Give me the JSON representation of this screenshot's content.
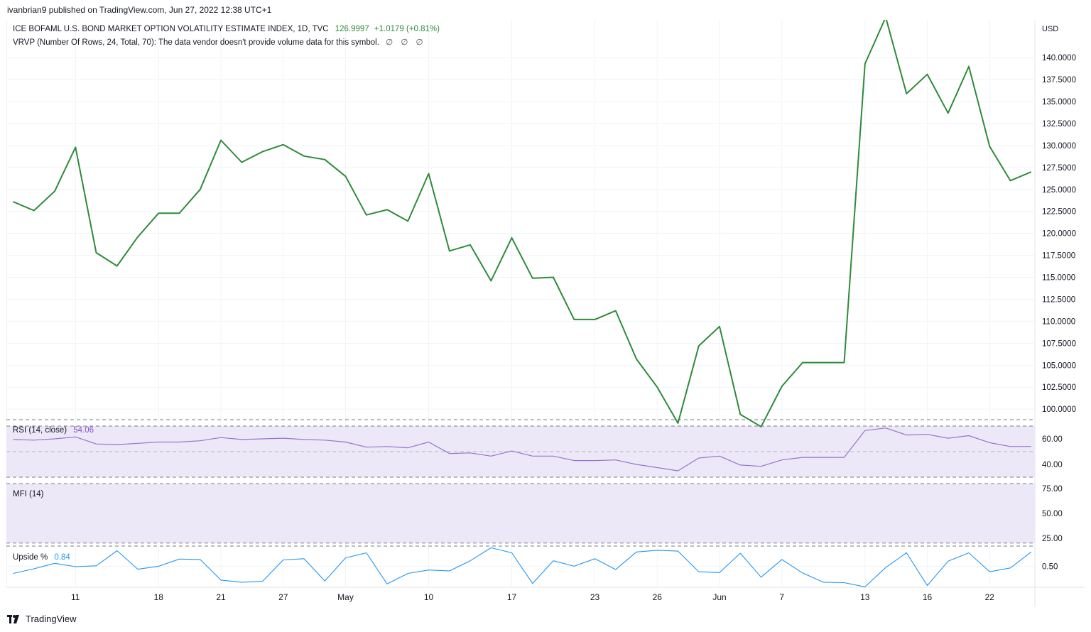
{
  "header": {
    "published": "ivanbrian9 published on TradingView.com, Jun 27, 2022 12:38 UTC+1"
  },
  "legend": {
    "symbol": "ICE BOFAML U.S. BOND MARKET OPTION VOLATILITY ESTIMATE INDEX, 1D, TVC",
    "last": "126.9997",
    "change": "+1.0179 (+0.81%)",
    "vrvp": "VRVP (Number Of Rows, 24, Total, 70): The data vendor doesn't provide volume data for this symbol.",
    "vrvp_icons": "∅ ∅ ∅",
    "rsi_label": "RSI (14, close)",
    "rsi_value": "54.06",
    "mfi_label": "MFI (14)",
    "upside_label": "Upside %",
    "upside_value": "0.84"
  },
  "footer": {
    "brand": "TradingView",
    "logo_icon": "tradingview-logo-icon"
  },
  "colors": {
    "price": "#2e8b3a",
    "rsi": "#9575cd",
    "upside": "#2196f3",
    "band": "#ede8f7"
  },
  "chart_data": [
    {
      "type": "line",
      "name": "price",
      "currency": "USD",
      "x_tick_labels": [
        "11",
        "18",
        "21",
        "27",
        "May",
        "10",
        "17",
        "23",
        "26",
        "Jun",
        "7",
        "13",
        "16",
        "22"
      ],
      "x_tick_index": [
        3,
        7,
        10,
        13,
        16,
        20,
        24,
        28,
        31,
        34,
        37,
        41,
        44,
        47
      ],
      "yticks": [
        100,
        102.5,
        105,
        107.5,
        110,
        112.5,
        115,
        117.5,
        120,
        122.5,
        125,
        127.5,
        130,
        132.5,
        135,
        137.5,
        140
      ],
      "ylim": [
        98.8,
        144.3
      ],
      "values": [
        123.6,
        122.6,
        124.8,
        129.8,
        117.8,
        116.3,
        119.6,
        122.3,
        122.3,
        125.0,
        130.6,
        128.1,
        129.3,
        130.1,
        128.8,
        128.4,
        126.5,
        122.1,
        122.7,
        121.4,
        126.8,
        118.0,
        118.7,
        114.6,
        119.5,
        114.9,
        115.0,
        110.2,
        110.2,
        111.2,
        105.7,
        102.5,
        98.4,
        107.2,
        109.4,
        99.4,
        98.0,
        102.6,
        105.3,
        105.3,
        105.3,
        139.3,
        144.6,
        135.9,
        138.1,
        133.7,
        139.0,
        129.9,
        126.0,
        127.0
      ]
    },
    {
      "type": "line",
      "name": "RSI (14, close)",
      "yticks": [
        40,
        60
      ],
      "ylim": [
        25,
        75
      ],
      "band": [
        30,
        70
      ],
      "midline": 50,
      "values": [
        59.5,
        59.0,
        60.0,
        61.5,
        56.0,
        55.5,
        56.5,
        57.5,
        57.5,
        58.5,
        61.0,
        59.5,
        60.0,
        60.5,
        59.5,
        59.0,
        57.5,
        53.5,
        54.0,
        53.0,
        57.5,
        48.5,
        49.0,
        46.5,
        50.5,
        46.5,
        46.5,
        43.0,
        43.0,
        43.5,
        40.0,
        37.5,
        35.0,
        45.0,
        46.5,
        39.5,
        38.5,
        43.5,
        45.5,
        45.5,
        45.5,
        66.5,
        68.5,
        63.0,
        63.5,
        60.5,
        62.5,
        57.0,
        54.0,
        54.06
      ]
    },
    {
      "type": "line",
      "name": "MFI (14)",
      "yticks": [
        25,
        50,
        75
      ],
      "ylim": [
        17,
        80
      ],
      "band": [
        20,
        80
      ],
      "values": []
    },
    {
      "type": "line",
      "name": "Upside %",
      "yticks": [
        0.5
      ],
      "ylim": [
        0,
        0.98
      ],
      "values": [
        0.33,
        0.44,
        0.57,
        0.49,
        0.51,
        0.87,
        0.43,
        0.5,
        0.67,
        0.66,
        0.17,
        0.12,
        0.14,
        0.65,
        0.68,
        0.15,
        0.7,
        0.82,
        0.08,
        0.33,
        0.41,
        0.39,
        0.63,
        0.94,
        0.82,
        0.09,
        0.63,
        0.5,
        0.68,
        0.42,
        0.84,
        0.88,
        0.86,
        0.37,
        0.35,
        0.81,
        0.24,
        0.66,
        0.34,
        0.12,
        0.11,
        0.01,
        0.47,
        0.82,
        0.04,
        0.62,
        0.82,
        0.37,
        0.46,
        0.84
      ]
    }
  ]
}
